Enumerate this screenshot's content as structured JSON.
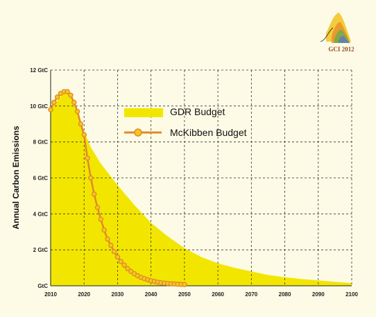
{
  "logo": {
    "text": "GCI 2012"
  },
  "chart_data": {
    "type": "area",
    "title": "",
    "xlabel": "",
    "ylabel": "Annual Carbon Emissions",
    "xlim": [
      2010,
      2100
    ],
    "ylim": [
      0,
      12
    ],
    "x_ticks": [
      2010,
      2020,
      2030,
      2040,
      2050,
      2060,
      2070,
      2080,
      2090,
      2100
    ],
    "x_tick_labels": [
      "2010",
      "2020",
      "2030",
      "2040",
      "2050",
      "2060",
      "2070",
      "2080",
      "2090",
      "2100"
    ],
    "y_ticks": [
      0,
      2,
      4,
      6,
      8,
      10,
      12
    ],
    "y_tick_labels": [
      "GtC",
      "2 GtC",
      "4 GtC",
      "6 GtC",
      "8 GtC",
      "10 GtC",
      "12 GtC"
    ],
    "grid": true,
    "legend": "upper-middle",
    "series": [
      {
        "name": "GDR Budget",
        "type": "area",
        "color": "#f2e600",
        "x": [
          2010,
          2012,
          2014,
          2015,
          2016,
          2018,
          2020,
          2022,
          2025,
          2030,
          2035,
          2040,
          2045,
          2050,
          2055,
          2060,
          2065,
          2070,
          2075,
          2080,
          2085,
          2090,
          2095,
          2100
        ],
        "y": [
          9.8,
          10.3,
          10.7,
          10.8,
          10.6,
          9.8,
          8.6,
          7.7,
          6.8,
          5.6,
          4.5,
          3.5,
          2.75,
          2.1,
          1.6,
          1.25,
          1.0,
          0.8,
          0.6,
          0.48,
          0.38,
          0.3,
          0.22,
          0.15
        ]
      },
      {
        "name": "McKibben Budget",
        "type": "line",
        "color": "#e0892a",
        "marker_fill": "#f2c81e",
        "x": [
          2010,
          2011,
          2012,
          2013,
          2014,
          2015,
          2016,
          2017,
          2018,
          2019,
          2020,
          2021,
          2022,
          2023,
          2024,
          2025,
          2026,
          2027,
          2028,
          2029,
          2030,
          2031,
          2032,
          2033,
          2034,
          2035,
          2036,
          2037,
          2038,
          2039,
          2040,
          2041,
          2042,
          2043,
          2044,
          2045,
          2046,
          2047,
          2048,
          2049,
          2050
        ],
        "y": [
          9.8,
          10.2,
          10.5,
          10.7,
          10.8,
          10.8,
          10.6,
          10.2,
          9.7,
          9.0,
          8.4,
          7.1,
          6.0,
          5.1,
          4.35,
          3.7,
          3.1,
          2.6,
          2.25,
          1.9,
          1.6,
          1.35,
          1.15,
          0.95,
          0.8,
          0.67,
          0.56,
          0.47,
          0.4,
          0.34,
          0.28,
          0.24,
          0.2,
          0.17,
          0.15,
          0.13,
          0.11,
          0.1,
          0.09,
          0.08,
          0.07
        ]
      }
    ]
  }
}
